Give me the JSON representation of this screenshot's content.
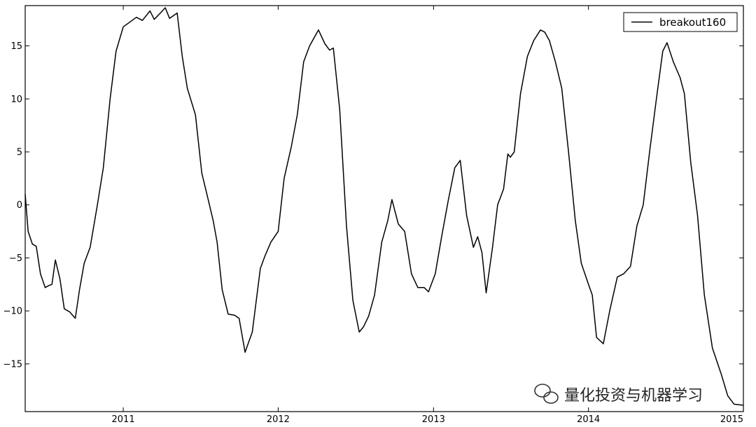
{
  "chart_data": {
    "type": "line",
    "title": "",
    "xlabel": "",
    "ylabel": "",
    "xlim": [
      "2010-05-15",
      "2015-01-01"
    ],
    "ylim": [
      -19.5,
      18.8
    ],
    "grid": false,
    "legend_position": "top-right",
    "x_ticks": [
      "2011",
      "2012",
      "2013",
      "2014",
      "2015"
    ],
    "y_ticks": [
      15,
      10,
      5,
      0,
      -5,
      -10,
      -15
    ],
    "series": [
      {
        "name": "breakout160",
        "color": "#000000",
        "points": [
          [
            "2010-05-15",
            1.0
          ],
          [
            "2010-05-22",
            -2.5
          ],
          [
            "2010-06-01",
            -3.7
          ],
          [
            "2010-06-10",
            -3.9
          ],
          [
            "2010-06-20",
            -6.5
          ],
          [
            "2010-07-01",
            -7.8
          ],
          [
            "2010-07-10",
            -7.6
          ],
          [
            "2010-07-17",
            -7.5
          ],
          [
            "2010-07-25",
            -5.2
          ],
          [
            "2010-08-05",
            -7.0
          ],
          [
            "2010-08-15",
            -9.8
          ],
          [
            "2010-08-28",
            -10.1
          ],
          [
            "2010-09-10",
            -10.7
          ],
          [
            "2010-09-20",
            -8.0
          ],
          [
            "2010-10-01",
            -5.5
          ],
          [
            "2010-10-15",
            -4.0
          ],
          [
            "2010-11-01",
            0.0
          ],
          [
            "2010-11-15",
            3.5
          ],
          [
            "2010-12-01",
            10.0
          ],
          [
            "2010-12-15",
            14.5
          ],
          [
            "2011-01-01",
            16.8
          ],
          [
            "2011-01-15",
            17.2
          ],
          [
            "2011-02-01",
            17.7
          ],
          [
            "2011-02-15",
            17.4
          ],
          [
            "2011-03-05",
            18.3
          ],
          [
            "2011-03-15",
            17.5
          ],
          [
            "2011-04-01",
            18.2
          ],
          [
            "2011-04-10",
            18.6
          ],
          [
            "2011-04-20",
            17.6
          ],
          [
            "2011-05-01",
            17.9
          ],
          [
            "2011-05-08",
            18.1
          ],
          [
            "2011-05-20",
            14.0
          ],
          [
            "2011-06-01",
            11.0
          ],
          [
            "2011-06-20",
            8.5
          ],
          [
            "2011-07-05",
            3.0
          ],
          [
            "2011-07-20",
            0.5
          ],
          [
            "2011-08-01",
            -1.5
          ],
          [
            "2011-08-10",
            -3.5
          ],
          [
            "2011-08-22",
            -8.0
          ],
          [
            "2011-09-05",
            -10.3
          ],
          [
            "2011-09-20",
            -10.4
          ],
          [
            "2011-10-01",
            -10.7
          ],
          [
            "2011-10-15",
            -13.9
          ],
          [
            "2011-11-01",
            -12.0
          ],
          [
            "2011-11-20",
            -6.0
          ],
          [
            "2011-12-01",
            -4.8
          ],
          [
            "2011-12-15",
            -3.5
          ],
          [
            "2012-01-01",
            -2.5
          ],
          [
            "2012-01-15",
            2.5
          ],
          [
            "2012-02-01",
            5.5
          ],
          [
            "2012-02-15",
            8.5
          ],
          [
            "2012-03-01",
            13.5
          ],
          [
            "2012-03-15",
            15.0
          ],
          [
            "2012-04-05",
            16.5
          ],
          [
            "2012-04-20",
            15.2
          ],
          [
            "2012-05-01",
            14.6
          ],
          [
            "2012-05-10",
            14.8
          ],
          [
            "2012-05-25",
            9.0
          ],
          [
            "2012-06-10",
            -2.0
          ],
          [
            "2012-06-25",
            -9.0
          ],
          [
            "2012-07-10",
            -12.0
          ],
          [
            "2012-07-20",
            -11.5
          ],
          [
            "2012-08-01",
            -10.5
          ],
          [
            "2012-08-15",
            -8.5
          ],
          [
            "2012-09-01",
            -3.5
          ],
          [
            "2012-09-15",
            -1.5
          ],
          [
            "2012-09-25",
            0.5
          ],
          [
            "2012-10-10",
            -1.8
          ],
          [
            "2012-10-25",
            -2.5
          ],
          [
            "2012-11-10",
            -6.5
          ],
          [
            "2012-11-25",
            -7.8
          ],
          [
            "2012-12-10",
            -7.8
          ],
          [
            "2012-12-20",
            -8.2
          ],
          [
            "2013-01-05",
            -6.5
          ],
          [
            "2013-01-20",
            -3.0
          ],
          [
            "2013-02-05",
            0.5
          ],
          [
            "2013-02-20",
            3.5
          ],
          [
            "2013-03-05",
            4.2
          ],
          [
            "2013-03-20",
            -1.0
          ],
          [
            "2013-04-05",
            -4.0
          ],
          [
            "2013-04-15",
            -3.0
          ],
          [
            "2013-04-25",
            -4.5
          ],
          [
            "2013-05-05",
            -8.3
          ],
          [
            "2013-05-20",
            -4.0
          ],
          [
            "2013-06-01",
            0.0
          ],
          [
            "2013-06-15",
            1.5
          ],
          [
            "2013-06-25",
            4.8
          ],
          [
            "2013-07-01",
            4.5
          ],
          [
            "2013-07-10",
            5.0
          ],
          [
            "2013-07-25",
            10.5
          ],
          [
            "2013-08-10",
            14.0
          ],
          [
            "2013-08-25",
            15.5
          ],
          [
            "2013-09-10",
            16.5
          ],
          [
            "2013-09-20",
            16.3
          ],
          [
            "2013-10-01",
            15.5
          ],
          [
            "2013-10-15",
            13.5
          ],
          [
            "2013-10-30",
            11.0
          ],
          [
            "2013-11-15",
            5.0
          ],
          [
            "2013-12-01",
            -1.5
          ],
          [
            "2013-12-15",
            -5.5
          ],
          [
            "2014-01-01",
            -7.5
          ],
          [
            "2014-01-10",
            -8.5
          ],
          [
            "2014-01-20",
            -12.5
          ],
          [
            "2014-02-05",
            -13.1
          ],
          [
            "2014-02-20",
            -10.0
          ],
          [
            "2014-03-10",
            -6.8
          ],
          [
            "2014-03-25",
            -6.5
          ],
          [
            "2014-04-10",
            -5.8
          ],
          [
            "2014-04-25",
            -2.0
          ],
          [
            "2014-05-10",
            0.0
          ],
          [
            "2014-05-25",
            5.0
          ],
          [
            "2014-06-10",
            10.0
          ],
          [
            "2014-06-25",
            14.5
          ],
          [
            "2014-07-05",
            15.3
          ],
          [
            "2014-07-20",
            13.5
          ],
          [
            "2014-08-05",
            12.0
          ],
          [
            "2014-08-15",
            10.5
          ],
          [
            "2014-08-30",
            4.0
          ],
          [
            "2014-09-15",
            -1.0
          ],
          [
            "2014-10-01",
            -8.5
          ],
          [
            "2014-10-20",
            -13.5
          ],
          [
            "2014-11-10",
            -16.0
          ],
          [
            "2014-11-25",
            -18.0
          ],
          [
            "2014-12-10",
            -18.8
          ],
          [
            "2014-12-31",
            -18.9
          ]
        ]
      }
    ]
  },
  "watermark": {
    "text": "量化投资与机器学习",
    "icon": "wechat-icon"
  }
}
